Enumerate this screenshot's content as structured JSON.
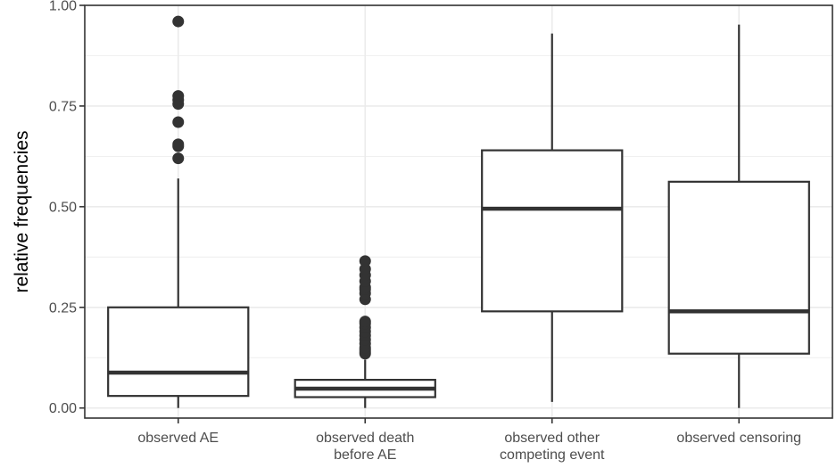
{
  "chart_data": {
    "type": "box",
    "title": "",
    "xlabel": "",
    "ylabel": "relative frequencies",
    "ylim": [
      -0.025,
      1.0
    ],
    "yticks": [
      0.0,
      0.25,
      0.5,
      0.75,
      1.0
    ],
    "ytick_labels": [
      "0.00",
      "0.25",
      "0.50",
      "0.75",
      "1.00"
    ],
    "grid": true,
    "categories": [
      [
        "observed AE"
      ],
      [
        "observed death",
        "before AE"
      ],
      [
        "observed other",
        "competing event"
      ],
      [
        "observed censoring"
      ]
    ],
    "boxes": [
      {
        "min": 0.0,
        "q1": 0.03,
        "median": 0.088,
        "q3": 0.25,
        "max": 0.57,
        "outliers": [
          0.62,
          0.65,
          0.655,
          0.71,
          0.755,
          0.765,
          0.775,
          0.96
        ]
      },
      {
        "min": 0.0,
        "q1": 0.027,
        "median": 0.048,
        "q3": 0.07,
        "max": 0.12,
        "outliers": [
          0.135,
          0.14,
          0.145,
          0.15,
          0.16,
          0.17,
          0.18,
          0.19,
          0.2,
          0.21,
          0.215,
          0.27,
          0.285,
          0.295,
          0.3,
          0.315,
          0.33,
          0.345,
          0.365
        ]
      },
      {
        "min": 0.015,
        "q1": 0.24,
        "median": 0.495,
        "q3": 0.64,
        "max": 0.93,
        "outliers": []
      },
      {
        "min": 0.0,
        "q1": 0.135,
        "median": 0.24,
        "q3": 0.562,
        "max": 0.952,
        "outliers": []
      }
    ],
    "colors": {
      "box_line": "#333333",
      "grid": "#ebebeb",
      "panel_border": "#333333",
      "outlier": "#333333"
    }
  }
}
